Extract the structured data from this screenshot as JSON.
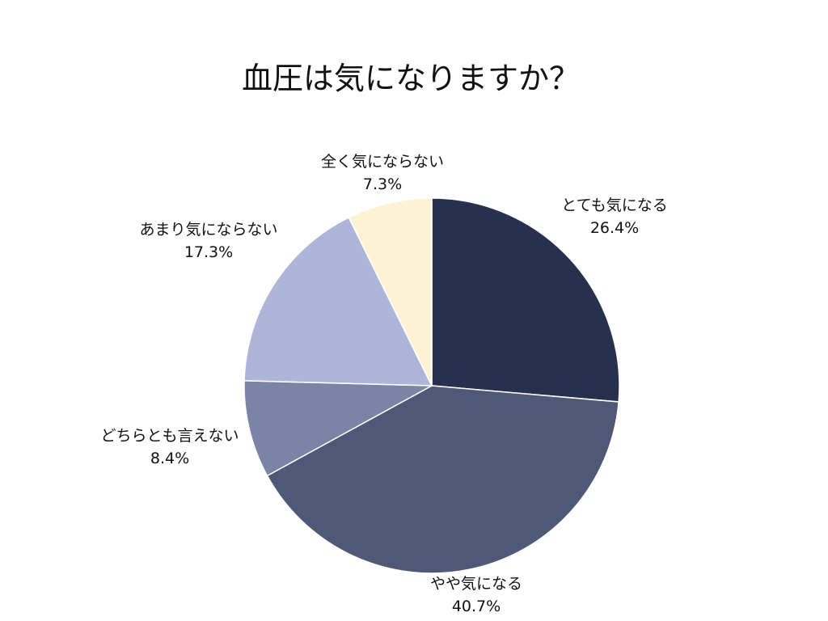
{
  "chart_data": {
    "type": "pie",
    "title": "血圧は気になりますか？",
    "slices": [
      {
        "label": "とても気になる",
        "value": 26.4,
        "value_label": "26.4%",
        "color": "#27304d"
      },
      {
        "label": "やや気になる",
        "value": 40.7,
        "value_label": "40.7%",
        "color": "#4f5877"
      },
      {
        "label": "どちらとも言えない",
        "value": 8.4,
        "value_label": "8.4%",
        "color": "#7a84a5"
      },
      {
        "label": "あまり気にならない",
        "value": 17.3,
        "value_label": "17.3%",
        "color": "#aeb5d8"
      },
      {
        "label": "全く気にならない",
        "value": 7.3,
        "value_label": "7.3%",
        "color": "#fdf3d4"
      }
    ],
    "start_angle_deg": 0,
    "direction": "clockwise",
    "legend": "none",
    "label_position": "outside"
  }
}
